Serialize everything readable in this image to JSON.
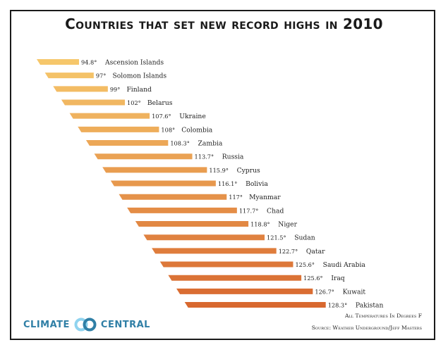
{
  "title": "Countries that set new record highs in 2010",
  "chart_data": {
    "type": "bar",
    "orientation": "horizontal",
    "title": "Countries that set new record highs in 2010",
    "categories": [
      "Ascension Islands",
      "Solomon Islands",
      "Finland",
      "Belarus",
      "Ukraine",
      "Colombia",
      "Zambia",
      "Russia",
      "Cyprus",
      "Bolivia",
      "Myanmar",
      "Chad",
      "Niger",
      "Sudan",
      "Qatar",
      "Saudi Arabia",
      "Iraq",
      "Kuwait",
      "Pakistan"
    ],
    "values": [
      94.8,
      97,
      99,
      102,
      107.6,
      108,
      108.3,
      113.7,
      115.9,
      116.1,
      117,
      117.7,
      118.8,
      121.5,
      122.7,
      125.6,
      125.6,
      126.7,
      128.3
    ],
    "value_labels": [
      "94.8°",
      "97°",
      "99°",
      "102°",
      "107.6°",
      "108°",
      "108.3°",
      "113.7°",
      "115.9°",
      "116.1°",
      "117°",
      "117.7°",
      "118.8°",
      "121.5°",
      "122.7°",
      "125.6°",
      "125.6°",
      "126.7°",
      "128.3°"
    ],
    "units": "All Temperatures In Degrees F",
    "source": "Source: Weather Underground/Jeff Masters",
    "colors": {
      "low": "#f6c76b",
      "high": "#d8682f"
    },
    "grid": false,
    "legend": "none"
  },
  "footer": {
    "units_note": "All Temperatures In Degrees F",
    "source_note": "Source: Weather Underground/Jeff Masters",
    "logo_left": "CLIMATE",
    "logo_right": "CENTRAL",
    "logo_icon": "climate-central-rings-icon",
    "logo_colors": {
      "text": "#2f7fa6",
      "ring_light": "#8fd3ef",
      "ring_dark": "#2f7fa6"
    }
  }
}
